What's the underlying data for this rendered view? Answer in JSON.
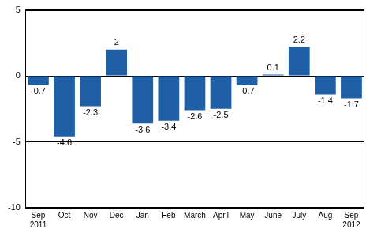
{
  "chart_data": {
    "type": "bar",
    "categories": [
      "Sep 2011",
      "Oct",
      "Nov",
      "Dec",
      "Jan",
      "Feb",
      "March",
      "April",
      "May",
      "June",
      "July",
      "Aug",
      "Sep 2012"
    ],
    "values": [
      -0.7,
      -4.6,
      -2.3,
      2,
      -3.6,
      -3.4,
      -2.6,
      -2.5,
      -0.7,
      0.1,
      2.2,
      -1.4,
      -1.7
    ],
    "color": "#1f5fa6",
    "ylim": [
      -10,
      5
    ],
    "yticks": [
      -10,
      -5,
      0,
      5
    ],
    "grid": true,
    "data_labels": true
  }
}
